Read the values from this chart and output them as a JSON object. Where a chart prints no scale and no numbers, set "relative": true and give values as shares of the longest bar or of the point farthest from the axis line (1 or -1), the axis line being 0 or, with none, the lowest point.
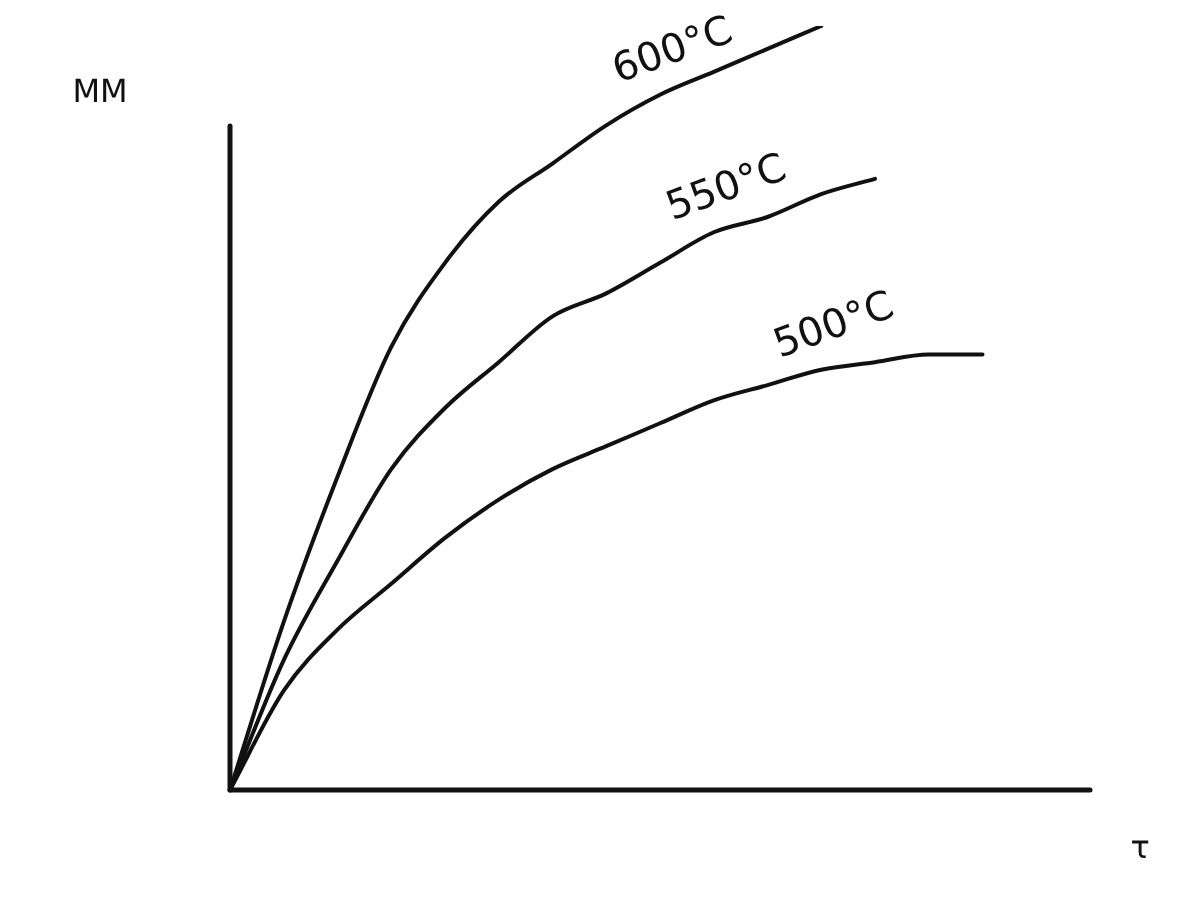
{
  "chart_data": {
    "type": "line",
    "relative": true,
    "xlabel": "τ",
    "ylabel": "MM",
    "legend": false,
    "marker": "none",
    "line_style": "solid",
    "categories": [
      null,
      null,
      null,
      null,
      null,
      null,
      null,
      null,
      null,
      null,
      null,
      null,
      null,
      null,
      null,
      null,
      null
    ],
    "series": [
      {
        "name": "600°C",
        "color": "#111111",
        "values": [
          0,
          0.22,
          0.41,
          0.58,
          0.69,
          0.77,
          0.82,
          0.87,
          0.91,
          0.94,
          0.97,
          1.0,
          null,
          null,
          null,
          null,
          null
        ]
      },
      {
        "name": "550°C",
        "color": "#111111",
        "values": [
          0,
          0.17,
          0.3,
          0.42,
          0.5,
          0.56,
          0.62,
          0.65,
          0.69,
          0.73,
          0.75,
          0.78,
          0.8,
          null,
          null,
          null,
          null
        ]
      },
      {
        "name": "500°C",
        "color": "#111111",
        "values": [
          0,
          0.13,
          0.21,
          0.27,
          0.33,
          0.38,
          0.42,
          0.45,
          0.48,
          0.51,
          0.53,
          0.55,
          0.56,
          0.57,
          0.57,
          null,
          null
        ]
      }
    ]
  }
}
